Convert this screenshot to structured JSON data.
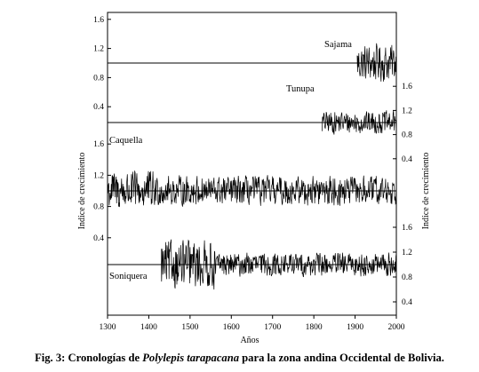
{
  "chart_data": {
    "type": "line",
    "xlabel": "Años",
    "ylabel_left": "Indice de crecimiento",
    "ylabel_right": "Indice de crecimiento",
    "xlim": [
      1300,
      2000
    ],
    "x_ticks": [
      "1300",
      "1400",
      "1500",
      "1600",
      "1700",
      "1800",
      "1900",
      "2000"
    ],
    "y_ticks": [
      "0.4",
      "0.8",
      "1.2",
      "1.6"
    ],
    "grid": false,
    "legend": "none",
    "series": [
      {
        "name": "Sajama",
        "start": 1905,
        "end": 2000,
        "mean": 1.0,
        "axis": "left"
      },
      {
        "name": "Tunupa",
        "start": 1820,
        "end": 2000,
        "mean": 1.0,
        "axis": "right"
      },
      {
        "name": "Caquella",
        "start": 1300,
        "end": 2000,
        "mean": 1.0,
        "axis": "left"
      },
      {
        "name": "Soniquera",
        "start": 1430,
        "end": 2000,
        "mean": 1.0,
        "axis": "right"
      }
    ]
  },
  "caption": {
    "prefix": "Fig. 3:  Cronologías de ",
    "species": "Polylepis tarapacana",
    "suffix": " para la zona andina Occidental de Bolivia."
  }
}
